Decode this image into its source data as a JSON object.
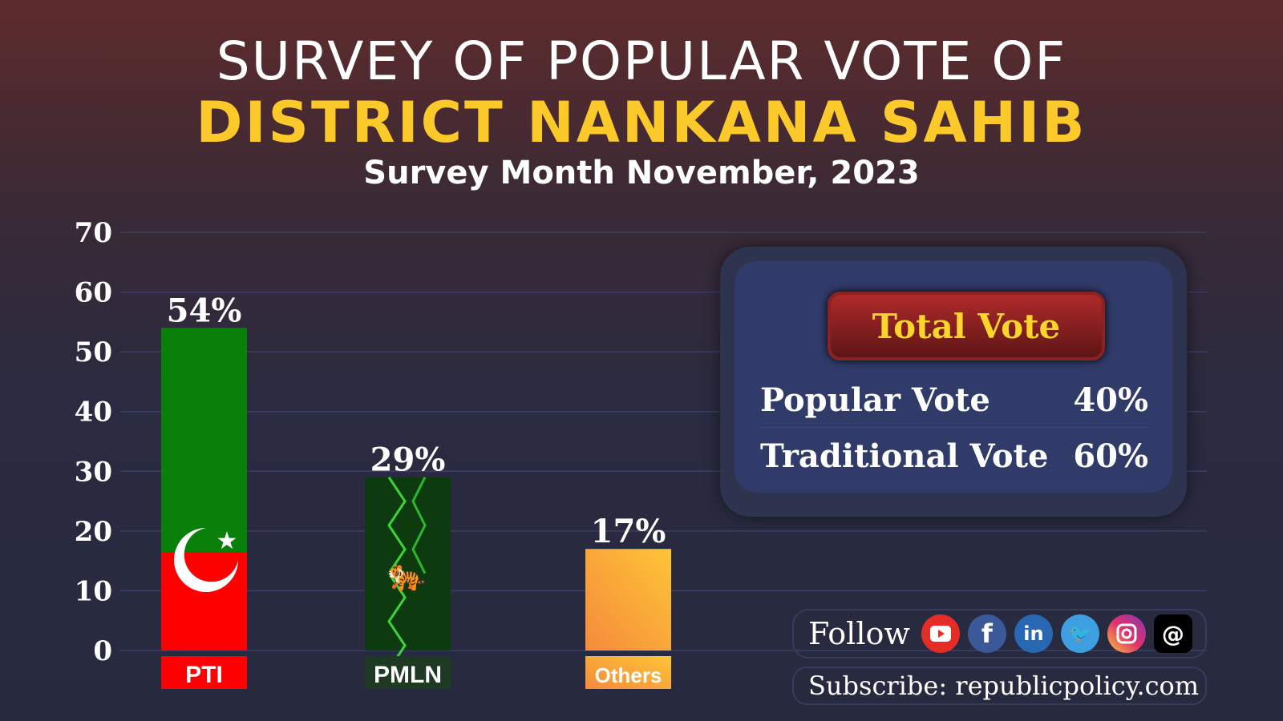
{
  "header": {
    "title_line1": "SURVEY OF POPULAR VOTE OF",
    "title_line2": "DISTRICT NANKANA SAHIB",
    "subtitle": "Survey Month November, 2023"
  },
  "chart_data": {
    "type": "bar",
    "categories": [
      "PTI",
      "PMLN",
      "Others"
    ],
    "values": [
      54,
      29,
      17
    ],
    "data_labels": [
      "54%",
      "29%",
      "17%"
    ],
    "ylim": [
      0,
      70
    ],
    "yticks": [
      "0",
      "10",
      "20",
      "30",
      "40",
      "50",
      "60",
      "70"
    ],
    "grid": true,
    "colors": {
      "PTI": "#0a7d0a",
      "PMLN": "#1c5a1c",
      "Others": "#f9a83a"
    }
  },
  "total_vote": {
    "title": "Total Vote",
    "rows": [
      {
        "label": "Popular Vote",
        "value": "40%"
      },
      {
        "label": "Traditional Vote",
        "value": "60%"
      }
    ]
  },
  "social": {
    "follow_label": "Follow",
    "icons": [
      "youtube-icon",
      "facebook-icon",
      "linkedin-icon",
      "twitter-icon",
      "instagram-icon",
      "threads-icon"
    ],
    "subscribe": "Subscribe: republicpolicy.com"
  }
}
